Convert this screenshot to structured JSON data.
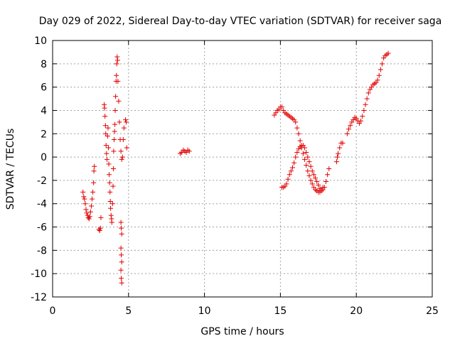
{
  "chart_data": {
    "type": "scatter",
    "title": "Day 029 of 2022, Sidereal Day-to-day VTEC variation (SDTVAR) for receiver saga",
    "xlabel": "GPS time / hours",
    "ylabel": "SDTVAR / TECUs",
    "xlim": [
      0,
      25
    ],
    "ylim": [
      -12,
      10
    ],
    "xticks": [
      "0",
      "5",
      "10",
      "15",
      "20",
      "25"
    ],
    "yticks": [
      "-12",
      "-10",
      "-8",
      "-6",
      "-4",
      "-2",
      "0",
      "2",
      "4",
      "6",
      "8",
      "10"
    ],
    "grid": true,
    "marker": "plus",
    "series": [
      {
        "name": "SDTVAR",
        "color": "#e00000",
        "points": [
          [
            2.0,
            -3.0
          ],
          [
            2.05,
            -3.4
          ],
          [
            2.1,
            -3.6
          ],
          [
            2.15,
            -4.0
          ],
          [
            2.2,
            -4.5
          ],
          [
            2.25,
            -4.8
          ],
          [
            2.3,
            -5.0
          ],
          [
            2.35,
            -5.2
          ],
          [
            2.4,
            -5.3
          ],
          [
            2.45,
            -5.1
          ],
          [
            2.5,
            -4.7
          ],
          [
            2.55,
            -4.2
          ],
          [
            2.6,
            -3.6
          ],
          [
            2.65,
            -3.0
          ],
          [
            2.7,
            -2.2
          ],
          [
            2.72,
            -1.2
          ],
          [
            2.75,
            -0.8
          ],
          [
            3.05,
            -6.2
          ],
          [
            3.1,
            -6.3
          ],
          [
            3.15,
            -6.1
          ],
          [
            3.18,
            -5.2
          ],
          [
            3.4,
            4.5
          ],
          [
            3.42,
            4.2
          ],
          [
            3.45,
            3.5
          ],
          [
            3.48,
            2.7
          ],
          [
            3.5,
            2.0
          ],
          [
            3.52,
            1.0
          ],
          [
            3.55,
            0.3
          ],
          [
            3.58,
            -0.2
          ],
          [
            3.62,
            1.8
          ],
          [
            3.65,
            2.5
          ],
          [
            3.68,
            0.8
          ],
          [
            3.7,
            -0.6
          ],
          [
            3.72,
            -1.5
          ],
          [
            3.75,
            -2.2
          ],
          [
            3.78,
            -3.0
          ],
          [
            3.8,
            -3.8
          ],
          [
            3.82,
            -4.4
          ],
          [
            3.85,
            -5.0
          ],
          [
            3.88,
            -5.3
          ],
          [
            3.9,
            -5.6
          ],
          [
            3.95,
            -4.0
          ],
          [
            3.98,
            -2.5
          ],
          [
            4.0,
            -1.0
          ],
          [
            4.02,
            0.5
          ],
          [
            4.05,
            1.5
          ],
          [
            4.08,
            2.2
          ],
          [
            4.1,
            2.8
          ],
          [
            4.12,
            4.0
          ],
          [
            4.15,
            5.2
          ],
          [
            4.18,
            6.5
          ],
          [
            4.2,
            7.0
          ],
          [
            4.22,
            8.0
          ],
          [
            4.25,
            8.6
          ],
          [
            4.28,
            8.3
          ],
          [
            4.3,
            6.5
          ],
          [
            4.35,
            4.8
          ],
          [
            4.4,
            3.0
          ],
          [
            4.45,
            1.5
          ],
          [
            4.5,
            0.5
          ],
          [
            4.55,
            -0.2
          ],
          [
            4.6,
            0.0
          ],
          [
            4.65,
            1.5
          ],
          [
            4.7,
            2.5
          ],
          [
            4.8,
            3.2
          ],
          [
            4.85,
            3.0
          ],
          [
            4.88,
            0.8
          ],
          [
            4.5,
            -5.6
          ],
          [
            4.52,
            -6.1
          ],
          [
            4.55,
            -6.6
          ],
          [
            4.5,
            -7.8
          ],
          [
            4.52,
            -8.4
          ],
          [
            4.55,
            -9.0
          ],
          [
            4.5,
            -9.7
          ],
          [
            4.52,
            -10.4
          ],
          [
            4.55,
            -10.8
          ],
          [
            8.4,
            0.3
          ],
          [
            8.5,
            0.4
          ],
          [
            8.6,
            0.6
          ],
          [
            8.7,
            0.5
          ],
          [
            8.8,
            0.4
          ],
          [
            8.9,
            0.6
          ],
          [
            9.0,
            0.5
          ],
          [
            14.6,
            3.6
          ],
          [
            14.7,
            3.8
          ],
          [
            14.8,
            4.0
          ],
          [
            14.9,
            4.1
          ],
          [
            15.0,
            4.3
          ],
          [
            15.1,
            4.3
          ],
          [
            15.2,
            4.0
          ],
          [
            15.3,
            3.8
          ],
          [
            15.4,
            3.7
          ],
          [
            15.5,
            3.6
          ],
          [
            15.6,
            3.5
          ],
          [
            15.7,
            3.4
          ],
          [
            15.8,
            3.3
          ],
          [
            15.9,
            3.2
          ],
          [
            16.0,
            3.0
          ],
          [
            16.1,
            2.5
          ],
          [
            16.2,
            2.0
          ],
          [
            16.3,
            1.4
          ],
          [
            16.4,
            0.8
          ],
          [
            16.5,
            0.3
          ],
          [
            16.6,
            -0.2
          ],
          [
            16.7,
            -0.7
          ],
          [
            16.8,
            -1.2
          ],
          [
            16.9,
            -1.6
          ],
          [
            17.0,
            -2.0
          ],
          [
            17.1,
            -2.3
          ],
          [
            17.2,
            -2.6
          ],
          [
            17.3,
            -2.8
          ],
          [
            17.4,
            -2.9
          ],
          [
            17.5,
            -3.0
          ],
          [
            17.6,
            -3.0
          ],
          [
            17.7,
            -2.9
          ],
          [
            17.8,
            -2.6
          ],
          [
            15.1,
            -2.6
          ],
          [
            15.2,
            -2.6
          ],
          [
            15.3,
            -2.5
          ],
          [
            15.4,
            -2.3
          ],
          [
            15.5,
            -1.9
          ],
          [
            15.6,
            -1.5
          ],
          [
            15.7,
            -1.2
          ],
          [
            15.8,
            -0.9
          ],
          [
            15.9,
            -0.5
          ],
          [
            16.0,
            0.0
          ],
          [
            16.1,
            0.4
          ],
          [
            16.2,
            0.7
          ],
          [
            16.3,
            0.9
          ],
          [
            16.4,
            1.0
          ],
          [
            16.5,
            1.0
          ],
          [
            16.6,
            0.8
          ],
          [
            16.7,
            0.4
          ],
          [
            16.8,
            0.0
          ],
          [
            16.9,
            -0.4
          ],
          [
            17.0,
            -0.8
          ],
          [
            17.1,
            -1.2
          ],
          [
            17.2,
            -1.5
          ],
          [
            17.3,
            -1.8
          ],
          [
            17.4,
            -2.1
          ],
          [
            17.5,
            -2.4
          ],
          [
            17.6,
            -2.7
          ],
          [
            17.7,
            -2.8
          ],
          [
            17.8,
            -2.8
          ],
          [
            17.9,
            -2.6
          ],
          [
            18.0,
            -2.1
          ],
          [
            18.1,
            -1.5
          ],
          [
            18.2,
            -1.0
          ],
          [
            18.7,
            -0.4
          ],
          [
            18.75,
            0.0
          ],
          [
            18.8,
            0.3
          ],
          [
            18.9,
            0.8
          ],
          [
            19.0,
            1.2
          ],
          [
            19.1,
            1.2
          ],
          [
            19.4,
            2.0
          ],
          [
            19.5,
            2.4
          ],
          [
            19.6,
            2.7
          ],
          [
            19.7,
            3.0
          ],
          [
            19.8,
            3.2
          ],
          [
            19.9,
            3.4
          ],
          [
            20.0,
            3.3
          ],
          [
            20.1,
            3.1
          ],
          [
            20.2,
            2.9
          ],
          [
            20.3,
            3.1
          ],
          [
            20.4,
            3.5
          ],
          [
            20.5,
            4.0
          ],
          [
            20.6,
            4.5
          ],
          [
            20.7,
            5.0
          ],
          [
            20.8,
            5.5
          ],
          [
            20.9,
            5.8
          ],
          [
            21.0,
            6.0
          ],
          [
            21.1,
            6.2
          ],
          [
            21.2,
            6.3
          ],
          [
            21.3,
            6.4
          ],
          [
            21.4,
            6.6
          ],
          [
            21.5,
            7.0
          ],
          [
            21.6,
            7.5
          ],
          [
            21.7,
            8.0
          ],
          [
            21.8,
            8.5
          ],
          [
            21.9,
            8.7
          ],
          [
            22.0,
            8.8
          ],
          [
            22.1,
            8.9
          ]
        ]
      }
    ]
  }
}
